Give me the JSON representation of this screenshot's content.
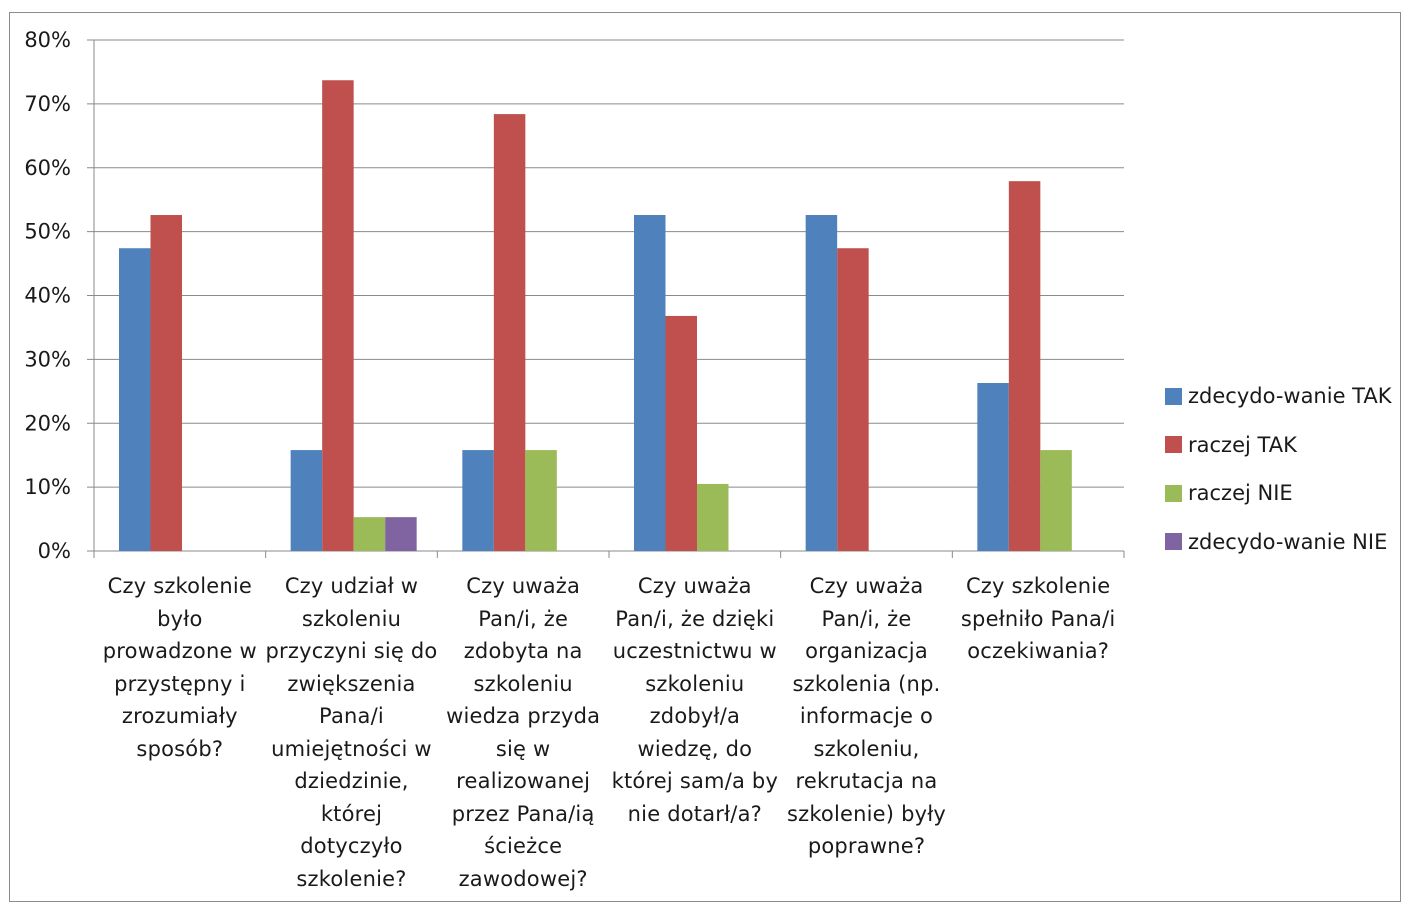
{
  "chart_data": {
    "type": "bar",
    "categories": [
      "Czy szkolenie było prowadzone w przystępny i zrozumiały sposób?",
      "Czy udział w szkoleniu przyczyni się do zwiększenia Pana/i umiejętności w dziedzinie, której dotyczyło szkolenie?",
      "Czy uważa Pan/i, że zdobyta na szkoleniu wiedza przyda się w realizowanej przez Pana/ią ścieżce zawodowej?",
      "Czy uważa Pan/i, że dzięki uczestnictwu w szkoleniu zdobył/a wiedzę, do której sam/a by nie dotarł/a?",
      "Czy uważa Pan/i, że organizacja szkolenia (np. informacje o szkoleniu, rekrutacja na szkolenie) były poprawne?",
      "Czy szkolenie spełniło Pana/i oczekiwania?"
    ],
    "category_lines": [
      [
        "Czy szkolenie",
        "było",
        "prowadzone w",
        "przystępny i",
        "zrozumiały",
        "sposób?"
      ],
      [
        "Czy udział w",
        "szkoleniu",
        "przyczyni się do",
        "zwiększenia",
        "Pana/i",
        "umiejętności w",
        "dziedzinie,",
        "której",
        "dotyczyło",
        "szkolenie?"
      ],
      [
        "Czy uważa",
        "Pan/i, że",
        "zdobyta na",
        "szkoleniu",
        "wiedza przyda",
        "się w",
        "realizowanej",
        "przez Pana/ią",
        "ścieżce",
        "zawodowej?"
      ],
      [
        "Czy uważa",
        "Pan/i, że dzięki",
        "uczestnictwu w",
        "szkoleniu",
        "zdobył/a",
        "wiedzę, do",
        "której sam/a by",
        "nie dotarł/a?"
      ],
      [
        "Czy uważa",
        "Pan/i, że",
        "organizacja",
        "szkolenia (np.",
        "informacje o",
        "szkoleniu,",
        "rekrutacja na",
        "szkolenie) były",
        "poprawne?"
      ],
      [
        "Czy szkolenie",
        "spełniło Pana/i",
        "oczekiwania?"
      ]
    ],
    "series": [
      {
        "name": "zdecydo-wanie TAK",
        "color": "#4f81bd",
        "values": [
          47.4,
          15.8,
          15.8,
          52.6,
          52.6,
          26.3
        ]
      },
      {
        "name": "raczej TAK",
        "color": "#c0504d",
        "values": [
          52.6,
          73.7,
          68.4,
          36.8,
          47.4,
          57.9
        ]
      },
      {
        "name": "raczej NIE",
        "color": "#9bbb59",
        "values": [
          0,
          5.3,
          15.8,
          10.5,
          0,
          15.8
        ]
      },
      {
        "name": "zdecydo-wanie NIE",
        "color": "#8064a2",
        "values": [
          0,
          5.3,
          0,
          0,
          0,
          0
        ]
      }
    ],
    "y_ticks": [
      "0%",
      "10%",
      "20%",
      "30%",
      "40%",
      "50%",
      "60%",
      "70%",
      "80%"
    ],
    "ylim": [
      0,
      80
    ],
    "grid": true,
    "legend_position": "right",
    "title": "",
    "xlabel": "",
    "ylabel": ""
  }
}
